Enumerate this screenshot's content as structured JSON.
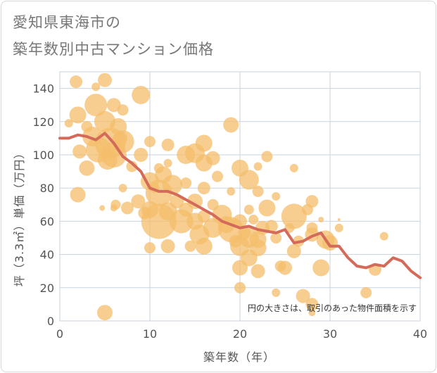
{
  "title_lines": [
    "愛知県東海市の",
    "築年数別中古マンション価格"
  ],
  "chart_data": {
    "type": "scatter",
    "title": "愛知県東海市の築年数別中古マンション価格",
    "xlabel": "築年数（年）",
    "ylabel": "坪（3.3㎡）単価（万円）",
    "xlim": [
      0,
      40
    ],
    "ylim": [
      0,
      150
    ],
    "xticks": [
      0,
      10,
      20,
      30,
      40
    ],
    "yticks": [
      0,
      20,
      40,
      60,
      80,
      100,
      120,
      140
    ],
    "grid": true,
    "note": "円の大きさは、取引のあった物件面積を示す",
    "colors": {
      "bubble": "#f4be6b",
      "line": "#d46a59",
      "grid": "#c9d3e0"
    },
    "trend_line": {
      "x": [
        0,
        1,
        2,
        3,
        4,
        5,
        6,
        7,
        8,
        9,
        10,
        11,
        12,
        13,
        14,
        15,
        16,
        17,
        18,
        19,
        20,
        21,
        22,
        23,
        24,
        25,
        26,
        27,
        28,
        29,
        30,
        31,
        32,
        33,
        34,
        35,
        36,
        37,
        38,
        39,
        40
      ],
      "y": [
        110,
        110,
        112,
        111,
        109,
        113,
        107,
        99,
        95,
        90,
        80,
        78,
        78,
        76,
        73,
        70,
        67,
        64,
        60,
        58,
        56,
        57,
        55,
        54,
        53,
        55,
        47,
        48,
        51,
        53,
        45,
        45,
        38,
        33,
        32,
        34,
        33,
        38,
        36,
        30,
        26
      ]
    },
    "points": [
      {
        "x": 1,
        "y": 119,
        "r": 6
      },
      {
        "x": 1.8,
        "y": 144,
        "r": 9
      },
      {
        "x": 2,
        "y": 124,
        "r": 12
      },
      {
        "x": 2.2,
        "y": 102,
        "r": 10
      },
      {
        "x": 2,
        "y": 76,
        "r": 11
      },
      {
        "x": 3,
        "y": 92,
        "r": 11
      },
      {
        "x": 3,
        "y": 117,
        "r": 8
      },
      {
        "x": 3.6,
        "y": 111,
        "r": 14
      },
      {
        "x": 4,
        "y": 130,
        "r": 16
      },
      {
        "x": 4,
        "y": 141,
        "r": 6
      },
      {
        "x": 4.3,
        "y": 103,
        "r": 18
      },
      {
        "x": 5,
        "y": 145,
        "r": 10
      },
      {
        "x": 5,
        "y": 120,
        "r": 15
      },
      {
        "x": 5.3,
        "y": 97,
        "r": 14
      },
      {
        "x": 5.6,
        "y": 107,
        "r": 22
      },
      {
        "x": 6,
        "y": 130,
        "r": 10
      },
      {
        "x": 6.5,
        "y": 117,
        "r": 12
      },
      {
        "x": 6.8,
        "y": 110,
        "r": 9
      },
      {
        "x": 7,
        "y": 127,
        "r": 8
      },
      {
        "x": 7,
        "y": 108,
        "r": 16
      },
      {
        "x": 6,
        "y": 100,
        "r": 18
      },
      {
        "x": 6.2,
        "y": 70,
        "r": 7
      },
      {
        "x": 6,
        "y": 68,
        "r": 5
      },
      {
        "x": 5,
        "y": 5,
        "r": 11
      },
      {
        "x": 4.7,
        "y": 68,
        "r": 4
      },
      {
        "x": 7,
        "y": 80,
        "r": 6
      },
      {
        "x": 7.5,
        "y": 68,
        "r": 9
      },
      {
        "x": 8,
        "y": 93,
        "r": 8
      },
      {
        "x": 8.7,
        "y": 72,
        "r": 10
      },
      {
        "x": 9,
        "y": 136,
        "r": 13
      },
      {
        "x": 9,
        "y": 100,
        "r": 10
      },
      {
        "x": 9.4,
        "y": 65,
        "r": 9
      },
      {
        "x": 10,
        "y": 108,
        "r": 8
      },
      {
        "x": 10,
        "y": 84,
        "r": 13
      },
      {
        "x": 10,
        "y": 67,
        "r": 12
      },
      {
        "x": 10,
        "y": 44,
        "r": 8
      },
      {
        "x": 10.5,
        "y": 80,
        "r": 7
      },
      {
        "x": 11,
        "y": 77,
        "r": 19
      },
      {
        "x": 11,
        "y": 60,
        "r": 25
      },
      {
        "x": 11,
        "y": 92,
        "r": 7
      },
      {
        "x": 11.5,
        "y": 88,
        "r": 12
      },
      {
        "x": 12,
        "y": 106,
        "r": 9
      },
      {
        "x": 12,
        "y": 95,
        "r": 6
      },
      {
        "x": 12,
        "y": 66,
        "r": 13
      },
      {
        "x": 12,
        "y": 45,
        "r": 10
      },
      {
        "x": 12.5,
        "y": 82,
        "r": 14
      },
      {
        "x": 13,
        "y": 72,
        "r": 10
      },
      {
        "x": 13.5,
        "y": 60,
        "r": 17
      },
      {
        "x": 14,
        "y": 100,
        "r": 13
      },
      {
        "x": 14,
        "y": 83,
        "r": 8
      },
      {
        "x": 14,
        "y": 67,
        "r": 10
      },
      {
        "x": 14.5,
        "y": 45,
        "r": 8
      },
      {
        "x": 15,
        "y": 101,
        "r": 14
      },
      {
        "x": 15,
        "y": 72,
        "r": 11
      },
      {
        "x": 15,
        "y": 60,
        "r": 12
      },
      {
        "x": 15.5,
        "y": 52,
        "r": 14
      },
      {
        "x": 16,
        "y": 107,
        "r": 12
      },
      {
        "x": 16,
        "y": 95,
        "r": 12
      },
      {
        "x": 16,
        "y": 80,
        "r": 9
      },
      {
        "x": 16,
        "y": 63,
        "r": 9
      },
      {
        "x": 16,
        "y": 45,
        "r": 12
      },
      {
        "x": 17,
        "y": 98,
        "r": 10
      },
      {
        "x": 17,
        "y": 70,
        "r": 8
      },
      {
        "x": 17,
        "y": 56,
        "r": 14
      },
      {
        "x": 17.5,
        "y": 87,
        "r": 8
      },
      {
        "x": 18,
        "y": 64,
        "r": 14
      },
      {
        "x": 18.5,
        "y": 58,
        "r": 12
      },
      {
        "x": 19,
        "y": 118,
        "r": 11
      },
      {
        "x": 19,
        "y": 78,
        "r": 6
      },
      {
        "x": 19,
        "y": 55,
        "r": 18
      },
      {
        "x": 19.5,
        "y": 48,
        "r": 9
      },
      {
        "x": 20,
        "y": 92,
        "r": 12
      },
      {
        "x": 20,
        "y": 60,
        "r": 10
      },
      {
        "x": 20,
        "y": 45,
        "r": 14
      },
      {
        "x": 20,
        "y": 32,
        "r": 11
      },
      {
        "x": 20,
        "y": 20,
        "r": 8
      },
      {
        "x": 20.5,
        "y": 53,
        "r": 9
      },
      {
        "x": 21,
        "y": 85,
        "r": 14
      },
      {
        "x": 21,
        "y": 67,
        "r": 7
      },
      {
        "x": 21,
        "y": 50,
        "r": 14
      },
      {
        "x": 21,
        "y": 38,
        "r": 12
      },
      {
        "x": 21.5,
        "y": 61,
        "r": 7
      },
      {
        "x": 22,
        "y": 93,
        "r": 6
      },
      {
        "x": 22,
        "y": 78,
        "r": 8
      },
      {
        "x": 22,
        "y": 49,
        "r": 12
      },
      {
        "x": 22,
        "y": 44,
        "r": 12
      },
      {
        "x": 22,
        "y": 30,
        "r": 10
      },
      {
        "x": 22.5,
        "y": 56,
        "r": 10
      },
      {
        "x": 23,
        "y": 99,
        "r": 8
      },
      {
        "x": 23,
        "y": 68,
        "r": 12
      },
      {
        "x": 23.5,
        "y": 57,
        "r": 9
      },
      {
        "x": 24,
        "y": 75,
        "r": 6
      },
      {
        "x": 24,
        "y": 50,
        "r": 8
      },
      {
        "x": 24,
        "y": 17,
        "r": 6
      },
      {
        "x": 24.5,
        "y": 33,
        "r": 8
      },
      {
        "x": 25,
        "y": 32,
        "r": 10
      },
      {
        "x": 25.5,
        "y": 56,
        "r": 7
      },
      {
        "x": 26,
        "y": 92,
        "r": 6
      },
      {
        "x": 26,
        "y": 63,
        "r": 18
      },
      {
        "x": 26,
        "y": 42,
        "r": 10
      },
      {
        "x": 26.5,
        "y": 48,
        "r": 8
      },
      {
        "x": 27,
        "y": 15,
        "r": 10
      },
      {
        "x": 27.5,
        "y": 67,
        "r": 8
      },
      {
        "x": 28,
        "y": 72,
        "r": 9
      },
      {
        "x": 28,
        "y": 56,
        "r": 8
      },
      {
        "x": 28,
        "y": 52,
        "r": 10
      },
      {
        "x": 28,
        "y": 10,
        "r": 9
      },
      {
        "x": 28,
        "y": 5,
        "r": 5
      },
      {
        "x": 29,
        "y": 61,
        "r": 4
      },
      {
        "x": 29,
        "y": 32,
        "r": 12
      },
      {
        "x": 29.5,
        "y": 49,
        "r": 13
      },
      {
        "x": 30,
        "y": 47,
        "r": 11
      },
      {
        "x": 31,
        "y": 61,
        "r": 2
      },
      {
        "x": 31,
        "y": 56,
        "r": 6
      },
      {
        "x": 34,
        "y": 17,
        "r": 8
      },
      {
        "x": 35,
        "y": 31,
        "r": 9
      },
      {
        "x": 36,
        "y": 51,
        "r": 6
      }
    ]
  }
}
